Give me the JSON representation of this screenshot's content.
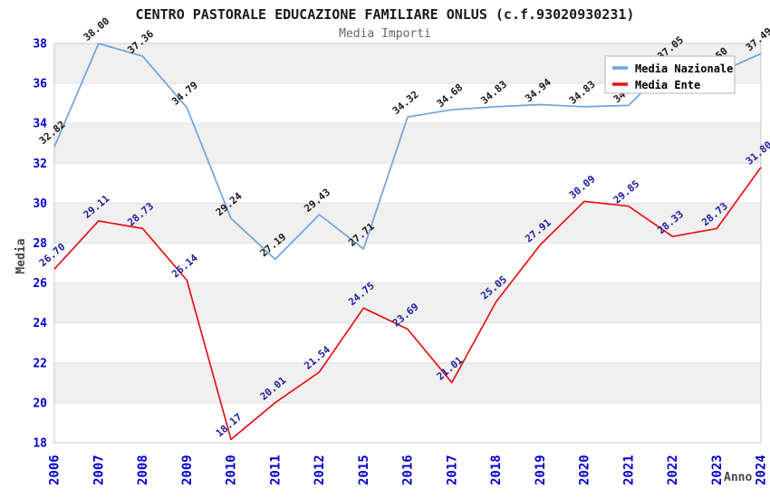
{
  "window": {
    "title": "CENTRO PASTORALE EDUCAZIONE FAMILIARE ONLUS (c.f.93020930231)"
  },
  "header": {
    "title": "CENTRO PASTORALE EDUCAZIONE FAMILIARE ONLUS (c.f.93020930231)",
    "subtitle": "Media Importi"
  },
  "axes": {
    "y_title": "Media",
    "x_title": "Anno",
    "tick_color": "#0000cc"
  },
  "legend": {
    "position": "top-right",
    "items": [
      {
        "label": "Media Nazionale",
        "color": "#6fa3db"
      },
      {
        "label": "Media Ente",
        "color": "#e41414"
      }
    ]
  },
  "colors": {
    "band_gray": "#f0f0f0",
    "gridline": "#e0e0e0",
    "plot_border": "#c8c8c8",
    "blue_series": "#6fa3db",
    "red_series": "#e41414",
    "blue_series_label": "#1a1a1a",
    "red_series_label": "#1d1d9e",
    "axis_tick_label": "#0000cc"
  },
  "chart_data": {
    "type": "line",
    "title": "CENTRO PASTORALE EDUCAZIONE FAMILIARE ONLUS (c.f.93020930231)",
    "subtitle": "Media Importi",
    "xlabel": "Anno",
    "ylabel": "Media",
    "x": [
      "2006",
      "2007",
      "2008",
      "2009",
      "2010",
      "2011",
      "2012",
      "2015",
      "2016",
      "2017",
      "2018",
      "2019",
      "2020",
      "2021",
      "2022",
      "2023",
      "2024"
    ],
    "ylim": [
      18,
      38
    ],
    "yticks": [
      18,
      20,
      22,
      24,
      26,
      28,
      30,
      32,
      34,
      36,
      38
    ],
    "grid": "horizontal-bands",
    "legend_position": "top-right",
    "series": [
      {
        "name": "Media Nazionale",
        "color": "#6fa3db",
        "label_color": "#1a1a1a",
        "values": [
          32.82,
          38.0,
          37.36,
          34.79,
          29.24,
          27.19,
          29.43,
          27.71,
          34.32,
          34.68,
          34.83,
          34.94,
          34.83,
          34.9,
          37.05,
          36.5,
          37.49
        ],
        "labels": [
          "32.82",
          "38.00",
          "37.36",
          "34.79",
          "29.24",
          "27.19",
          "29.43",
          "27.71",
          "34.32",
          "34.68",
          "34.83",
          "34.94",
          "34.83",
          "34.90",
          "37.05",
          "36.50",
          "37.49"
        ]
      },
      {
        "name": "Media Ente",
        "color": "#e41414",
        "label_color": "#1d1d9e",
        "values": [
          26.7,
          29.11,
          28.73,
          26.14,
          18.17,
          20.01,
          21.54,
          24.75,
          23.69,
          21.01,
          25.05,
          27.91,
          30.09,
          29.85,
          28.33,
          28.73,
          31.8
        ],
        "labels": [
          "26.70",
          "29.11",
          "28.73",
          "26.14",
          "18.17",
          "20.01",
          "21.54",
          "24.75",
          "23.69",
          "21.01",
          "25.05",
          "27.91",
          "30.09",
          "29.85",
          "28.33",
          "28.73",
          "31.80"
        ]
      }
    ]
  }
}
